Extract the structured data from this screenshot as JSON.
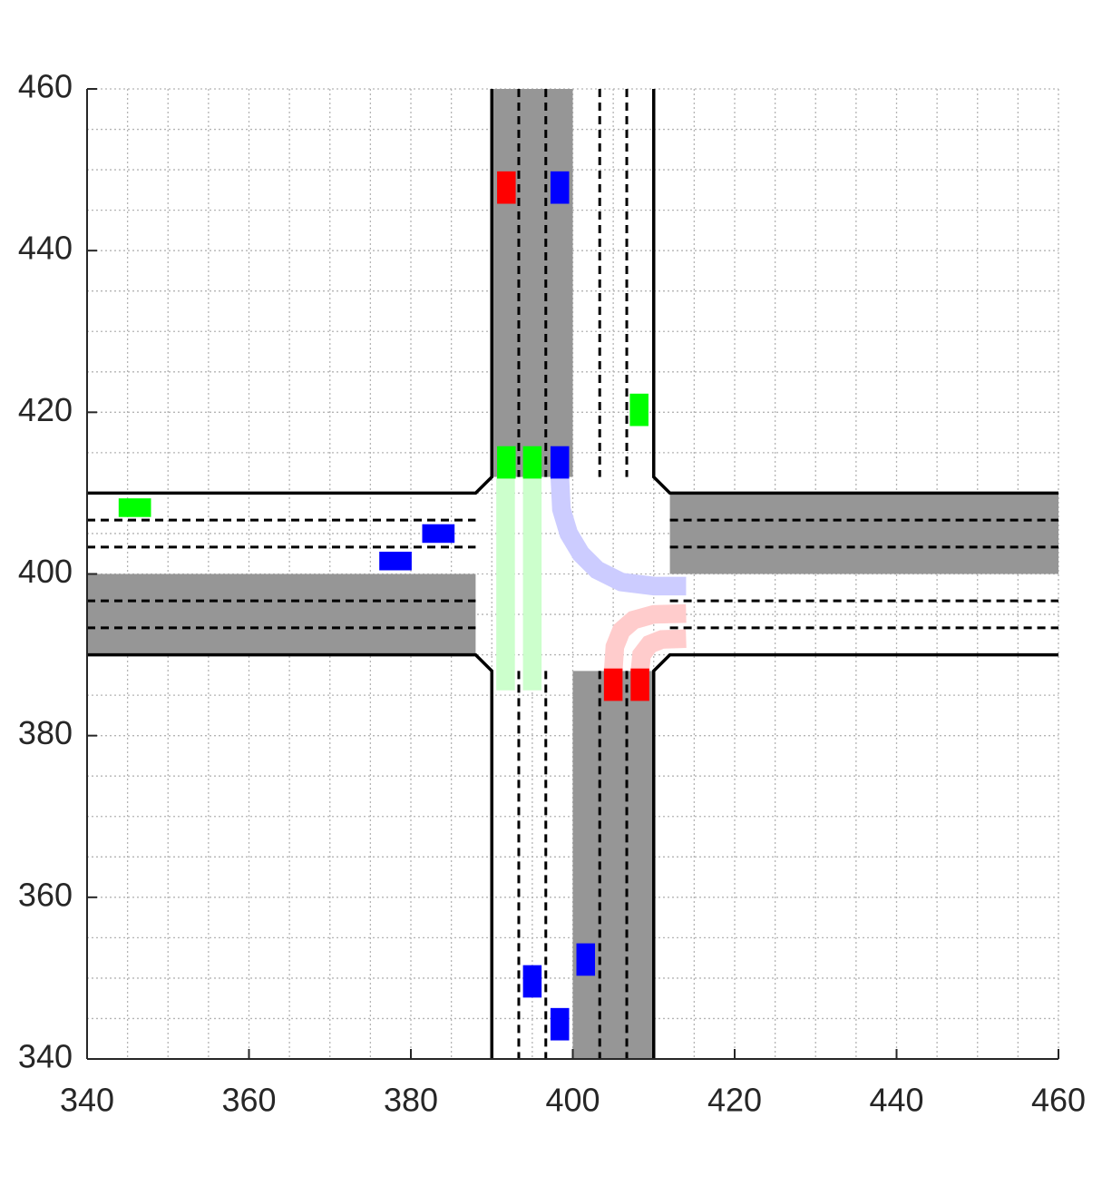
{
  "chart_data": {
    "type": "intersection",
    "xlim": [
      340,
      460
    ],
    "ylim": [
      340,
      460
    ],
    "xticks": [
      340,
      360,
      380,
      400,
      420,
      440,
      460
    ],
    "yticks": [
      340,
      360,
      380,
      400,
      420,
      440,
      460
    ],
    "grid": true,
    "grid_step": 5,
    "road": {
      "center": [
        400,
        400
      ],
      "half_width": 10,
      "corner": 2,
      "lane_lines": [
        393.33,
        396.67,
        403.33,
        406.67
      ],
      "color": "#969696"
    },
    "trajectories": [
      {
        "color": "#ccffcc",
        "x": [
          391.7,
          391.7
        ],
        "y": [
          412,
          385.6
        ]
      },
      {
        "color": "#ccffcc",
        "x": [
          395,
          395
        ],
        "y": [
          412,
          385.6
        ]
      },
      {
        "color": "#ccccff",
        "x": [
          398.4,
          398.6,
          399.5,
          401,
          403,
          406,
          410,
          414
        ],
        "y": [
          412,
          408,
          405,
          402.5,
          400.5,
          399,
          398.5,
          398.5
        ]
      },
      {
        "color": "#ffcccc",
        "x": [
          405,
          405.2,
          406,
          407.5,
          410,
          414
        ],
        "y": [
          388,
          391,
          393,
          394.3,
          395,
          395.1
        ]
      },
      {
        "color": "#ffcccc",
        "x": [
          408.3,
          408.5,
          409.5,
          411,
          414
        ],
        "y": [
          388,
          390,
          391.3,
          391.9,
          392
        ]
      }
    ],
    "vehicles": [
      {
        "color": "#ff0000",
        "x": 391.8,
        "y": 447.8,
        "heading": 90
      },
      {
        "color": "#0000ff",
        "x": 398.4,
        "y": 447.8,
        "heading": 90
      },
      {
        "color": "#00ff00",
        "x": 408.2,
        "y": 420.3,
        "heading": 90
      },
      {
        "color": "#00ff00",
        "x": 391.8,
        "y": 413.8,
        "heading": 90
      },
      {
        "color": "#00ff00",
        "x": 395,
        "y": 413.8,
        "heading": 90
      },
      {
        "color": "#0000ff",
        "x": 398.4,
        "y": 413.8,
        "heading": 90
      },
      {
        "color": "#00ff00",
        "x": 345.9,
        "y": 408.2,
        "heading": 0
      },
      {
        "color": "#0000ff",
        "x": 383.4,
        "y": 405,
        "heading": 0
      },
      {
        "color": "#0000ff",
        "x": 378.1,
        "y": 401.6,
        "heading": 0
      },
      {
        "color": "#ff0000",
        "x": 405,
        "y": 386.3,
        "heading": 90
      },
      {
        "color": "#ff0000",
        "x": 408.3,
        "y": 386.3,
        "heading": 90
      },
      {
        "color": "#0000ff",
        "x": 401.6,
        "y": 352.3,
        "heading": 90
      },
      {
        "color": "#0000ff",
        "x": 395,
        "y": 349.6,
        "heading": 90
      },
      {
        "color": "#0000ff",
        "x": 398.4,
        "y": 344.3,
        "heading": 90
      }
    ]
  }
}
